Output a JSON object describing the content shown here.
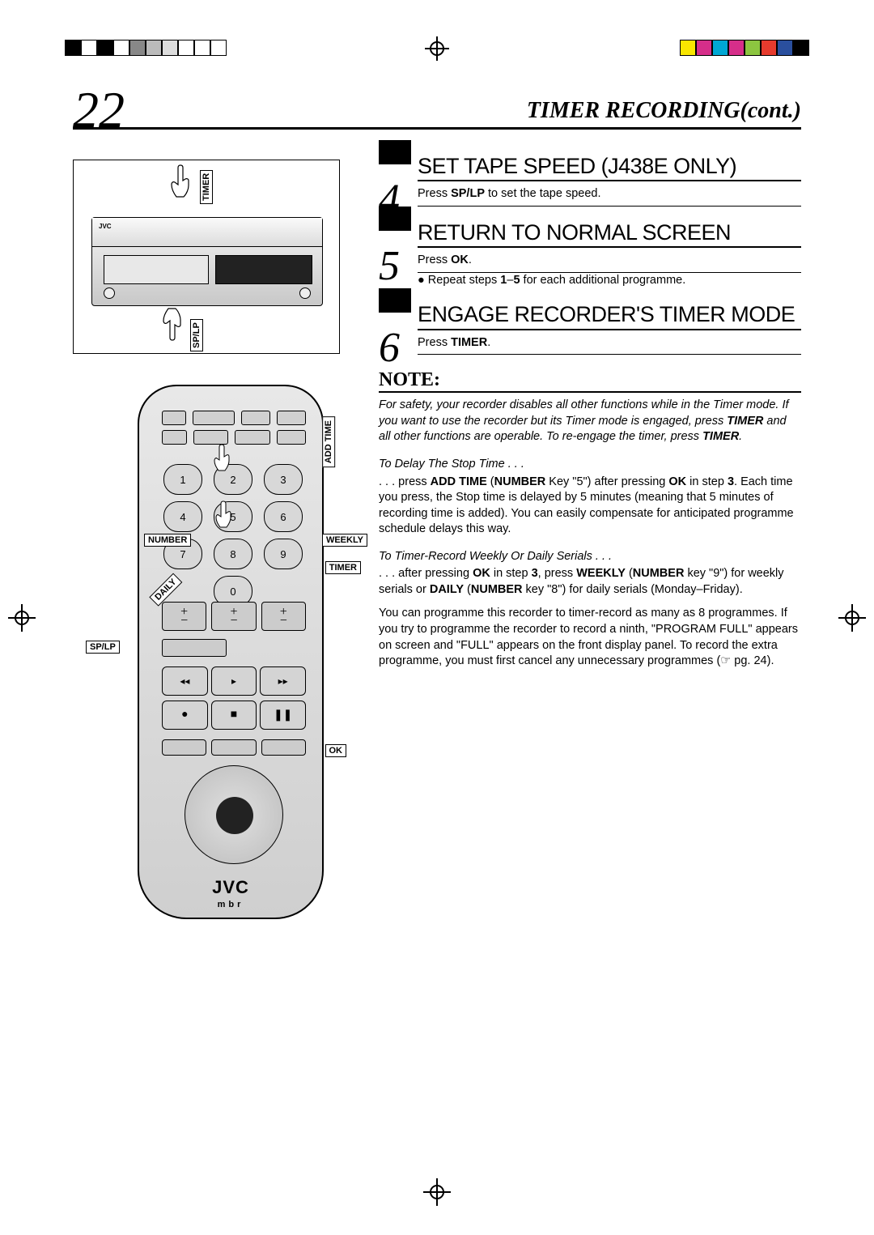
{
  "page": {
    "number": "22",
    "headerTitle": "TIMER RECORDING(cont.)"
  },
  "regColors": [
    "#f9e600",
    "#d62e8a",
    "#00a7d4",
    "#d62e8a",
    "#8cc540",
    "#e63b2e",
    "#2a4f9e",
    "#000000"
  ],
  "vcr": {
    "labels": {
      "timer": "TIMER",
      "splp": "SP/LP"
    }
  },
  "remote": {
    "brand": "JVC",
    "sub": "mbr",
    "numbers": [
      "1",
      "2",
      "3",
      "4",
      "5",
      "6",
      "7",
      "8",
      "9",
      "",
      "0",
      ""
    ],
    "callouts": {
      "number": "NUMBER",
      "weekly": "WEEKLY",
      "timer": "TIMER",
      "daily": "DAILY",
      "splp": "SP/LP",
      "ok": "OK",
      "addtime": "ADD TIME"
    }
  },
  "steps": [
    {
      "num": "4",
      "title": "SET TAPE SPEED (J438E ONLY)",
      "lines": [
        "Press <b>SP/LP</b> to set the tape speed."
      ]
    },
    {
      "num": "5",
      "title": "RETURN TO NORMAL SCREEN",
      "lines": [
        "Press <b>OK</b>."
      ],
      "bullets": [
        "Repeat steps <b>1</b>–<b>5</b> for each additional programme."
      ]
    },
    {
      "num": "6",
      "title": "ENGAGE RECORDER'S TIMER MODE",
      "lines": [
        "Press <b>TIMER</b>."
      ]
    }
  ],
  "note": {
    "heading": "NOTE:",
    "intro": "For safety, your recorder disables all other functions while in the Timer mode. If you want to use the recorder but its Timer mode is engaged, press <b>TIMER</b> and all other functions are operable. To re-engage the timer, press <b>TIMER</b>.",
    "sections": [
      {
        "sub": "To Delay The Stop Time . . .",
        "text": ". . . press <b>ADD TIME</b> (<b>NUMBER</b> Key \"5\") after pressing <b>OK</b> in step <b>3</b>. Each time you press, the Stop time is delayed by 5 minutes (meaning that 5 minutes of recording time is added). You can easily compensate for anticipated programme schedule delays this way."
      },
      {
        "sub": "To Timer-Record Weekly Or Daily Serials . . .",
        "text": ". . . after pressing <b>OK</b> in step <b>3</b>, press <b>WEEKLY</b> (<b>NUMBER</b> key \"9\") for weekly serials or <b>DAILY</b> (<b>NUMBER</b> key \"8\") for daily serials (Monday–Friday)."
      }
    ],
    "footer": "You can programme this recorder to timer-record as many as 8 programmes. If you try to programme the recorder to record a ninth, \"PROGRAM FULL\" appears on screen and \"FULL\" appears on the front display panel. To record the extra programme, you must first cancel any unnecessary programmes (☞ pg. 24)."
  }
}
